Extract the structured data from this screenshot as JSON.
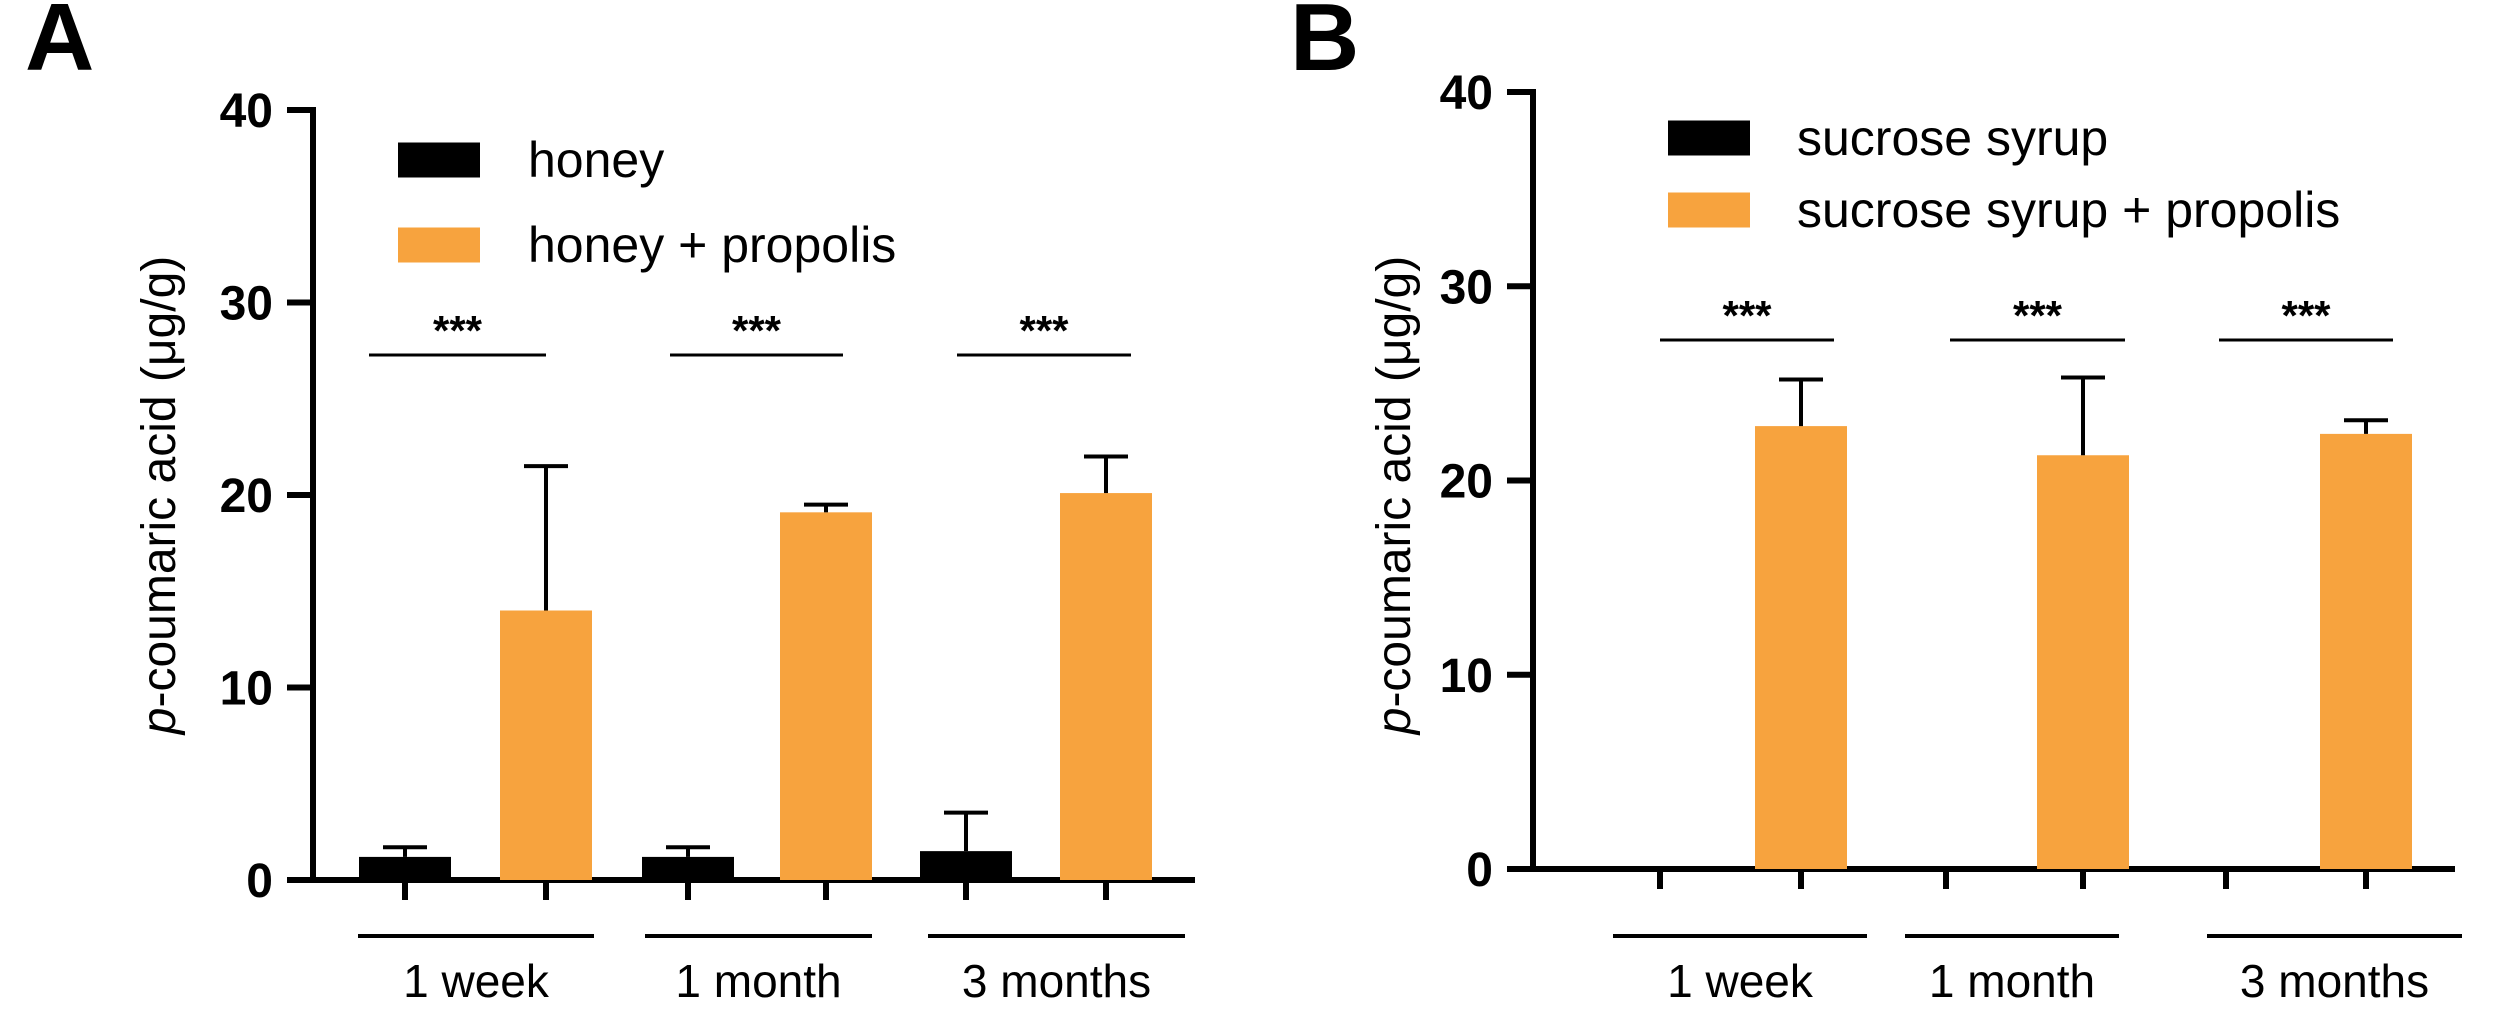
{
  "chart_data": [
    {
      "panel": "A",
      "type": "bar",
      "ylabel_italic": "p",
      "ylabel": "-coumaric acid (μg/g)",
      "ylim": [
        0,
        40
      ],
      "yticks": [
        "0",
        "10",
        "20",
        "30",
        "40"
      ],
      "categories": [
        "1 week",
        "1 month",
        "3 months"
      ],
      "series": [
        {
          "name": "honey",
          "color": "#000000",
          "values": [
            1.2,
            1.2,
            1.5
          ],
          "errors": [
            0.5,
            0.5,
            2.0
          ]
        },
        {
          "name": "honey + propolis",
          "color": "#F7A33E",
          "values": [
            14.0,
            19.1,
            20.1
          ],
          "errors": [
            7.5,
            0.4,
            1.9
          ]
        }
      ],
      "significance": [
        "***",
        "***",
        "***"
      ],
      "legend_position": "top-center"
    },
    {
      "panel": "B",
      "type": "bar",
      "ylabel_italic": "p",
      "ylabel": "-coumaric acid (μg/g)",
      "ylim": [
        0,
        40
      ],
      "yticks": [
        "0",
        "10",
        "20",
        "30",
        "40"
      ],
      "categories": [
        "1 week",
        "1 month",
        "3 months"
      ],
      "series": [
        {
          "name": "sucrose syrup",
          "color": "#000000",
          "values": [
            0,
            0,
            0
          ],
          "errors": [
            0,
            0,
            0
          ]
        },
        {
          "name": "sucrose syrup + propolis",
          "color": "#F7A33E",
          "values": [
            22.8,
            21.3,
            22.4
          ],
          "errors": [
            2.4,
            4.0,
            0.7
          ]
        }
      ],
      "significance": [
        "***",
        "***",
        "***"
      ],
      "legend_position": "top-center"
    }
  ]
}
